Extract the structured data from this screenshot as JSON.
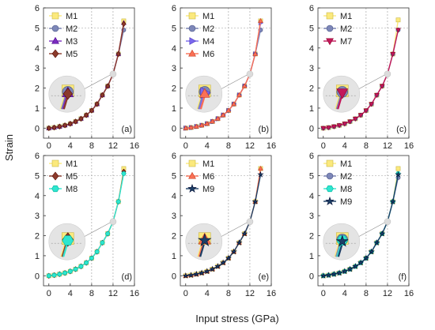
{
  "figure": {
    "xlabel": "Input stress (GPa)",
    "ylabel": "Strain"
  },
  "styles": {
    "M1": {
      "color": "#fbe97c",
      "marker": "square"
    },
    "M2": {
      "color": "#7d87b8",
      "marker": "circle"
    },
    "M3": {
      "color": "#7b2cbf",
      "marker": "triangle-up"
    },
    "M4": {
      "color": "#7b68ee",
      "marker": "triangle-right"
    },
    "M5": {
      "color": "#8b3a2b",
      "marker": "diamond"
    },
    "M6": {
      "color": "#fa7055",
      "marker": "triangle-up"
    },
    "M7": {
      "color": "#c2185b",
      "marker": "triangle-down"
    },
    "M8": {
      "color": "#2ee6cf",
      "marker": "hexagon"
    },
    "M9": {
      "color": "#1c3f66",
      "marker": "star"
    }
  },
  "chart_data": [
    {
      "panel": "(a)",
      "type": "line",
      "x": [
        0,
        1,
        2,
        3,
        4,
        5,
        6,
        7,
        8,
        9,
        10,
        11,
        12,
        13,
        14
      ],
      "y": [
        0,
        0.03,
        0.08,
        0.14,
        0.22,
        0.33,
        0.47,
        0.65,
        0.88,
        1.2,
        1.65,
        2.1,
        2.7,
        3.7,
        5.3
      ],
      "series": [
        "M1",
        "M2",
        "M3",
        "M5"
      ],
      "xlim": [
        -1,
        16
      ],
      "ylim": [
        -0.5,
        6
      ],
      "xticks": [
        0,
        4,
        8,
        12,
        16
      ],
      "yticks": [
        0,
        1,
        2,
        3,
        4,
        5,
        6
      ],
      "legend": "top-left",
      "end_points": {
        "M1": 5.35,
        "M2": 4.9,
        "M3": 5.25,
        "M5": 5.2
      }
    },
    {
      "panel": "(b)",
      "type": "line",
      "x": [
        0,
        1,
        2,
        3,
        4,
        5,
        6,
        7,
        8,
        9,
        10,
        11,
        12,
        13,
        14
      ],
      "y": [
        0,
        0.03,
        0.08,
        0.14,
        0.22,
        0.33,
        0.47,
        0.65,
        0.88,
        1.2,
        1.65,
        2.1,
        2.7,
        3.7,
        5.3
      ],
      "series": [
        "M1",
        "M2",
        "M4",
        "M6"
      ],
      "xlim": [
        -1,
        16
      ],
      "ylim": [
        -0.5,
        6
      ],
      "xticks": [
        0,
        4,
        8,
        12,
        16
      ],
      "yticks": [
        0,
        1,
        2,
        3,
        4,
        5,
        6
      ],
      "legend": "top-left",
      "end_points": {
        "M1": 5.35,
        "M2": 4.9,
        "M4": 5.25,
        "M6": 5.35
      }
    },
    {
      "panel": "(c)",
      "type": "line",
      "x": [
        0,
        1,
        2,
        3,
        4,
        5,
        6,
        7,
        8,
        9,
        10,
        11,
        12,
        13,
        14
      ],
      "y": [
        0,
        0.03,
        0.08,
        0.14,
        0.22,
        0.33,
        0.47,
        0.65,
        0.88,
        1.2,
        1.65,
        2.1,
        2.7,
        3.7,
        4.9
      ],
      "series": [
        "M1",
        "M2",
        "M7"
      ],
      "xlim": [
        -1,
        16
      ],
      "ylim": [
        -0.5,
        6
      ],
      "xticks": [
        0,
        4,
        8,
        12,
        16
      ],
      "yticks": [
        0,
        1,
        2,
        3,
        4,
        5,
        6
      ],
      "legend": "top-left",
      "end_points": {
        "M1": 5.4,
        "M2": 4.9,
        "M7": 4.9
      }
    },
    {
      "panel": "(d)",
      "type": "line",
      "x": [
        0,
        1,
        2,
        3,
        4,
        5,
        6,
        7,
        8,
        9,
        10,
        11,
        12,
        13,
        14
      ],
      "y": [
        0,
        0.03,
        0.08,
        0.14,
        0.22,
        0.33,
        0.47,
        0.65,
        0.88,
        1.2,
        1.65,
        2.1,
        2.7,
        3.7,
        5.1
      ],
      "series": [
        "M1",
        "M5",
        "M8"
      ],
      "xlim": [
        -1,
        16
      ],
      "ylim": [
        -0.5,
        6
      ],
      "xticks": [
        0,
        4,
        8,
        12,
        16
      ],
      "yticks": [
        0,
        1,
        2,
        3,
        4,
        5,
        6
      ],
      "legend": "top-left",
      "end_points": {
        "M1": 5.35,
        "M5": 5.2,
        "M8": 5.1
      }
    },
    {
      "panel": "(e)",
      "type": "line",
      "x": [
        0,
        1,
        2,
        3,
        4,
        5,
        6,
        7,
        8,
        9,
        10,
        11,
        12,
        13,
        14
      ],
      "y": [
        0,
        0.03,
        0.08,
        0.14,
        0.22,
        0.33,
        0.47,
        0.65,
        0.88,
        1.2,
        1.65,
        2.1,
        2.7,
        3.7,
        5.1
      ],
      "series": [
        "M1",
        "M6",
        "M9"
      ],
      "xlim": [
        -1,
        16
      ],
      "ylim": [
        -0.5,
        6
      ],
      "xticks": [
        0,
        4,
        8,
        12,
        16
      ],
      "yticks": [
        0,
        1,
        2,
        3,
        4,
        5,
        6
      ],
      "legend": "top-left",
      "end_points": {
        "M1": 5.35,
        "M6": 5.35,
        "M9": 5.05
      }
    },
    {
      "panel": "(f)",
      "type": "line",
      "x": [
        0,
        1,
        2,
        3,
        4,
        5,
        6,
        7,
        8,
        9,
        10,
        11,
        12,
        13,
        14
      ],
      "y": [
        0,
        0.03,
        0.08,
        0.14,
        0.22,
        0.33,
        0.47,
        0.65,
        0.88,
        1.2,
        1.65,
        2.1,
        2.7,
        3.7,
        5.1
      ],
      "series": [
        "M1",
        "M2",
        "M8",
        "M9"
      ],
      "xlim": [
        -1,
        16
      ],
      "ylim": [
        -0.5,
        6
      ],
      "xticks": [
        0,
        4,
        8,
        12,
        16
      ],
      "yticks": [
        0,
        1,
        2,
        3,
        4,
        5,
        6
      ],
      "legend": "top-left",
      "end_points": {
        "M1": 5.35,
        "M2": 4.9,
        "M8": 5.1,
        "M9": 5.05
      }
    }
  ]
}
